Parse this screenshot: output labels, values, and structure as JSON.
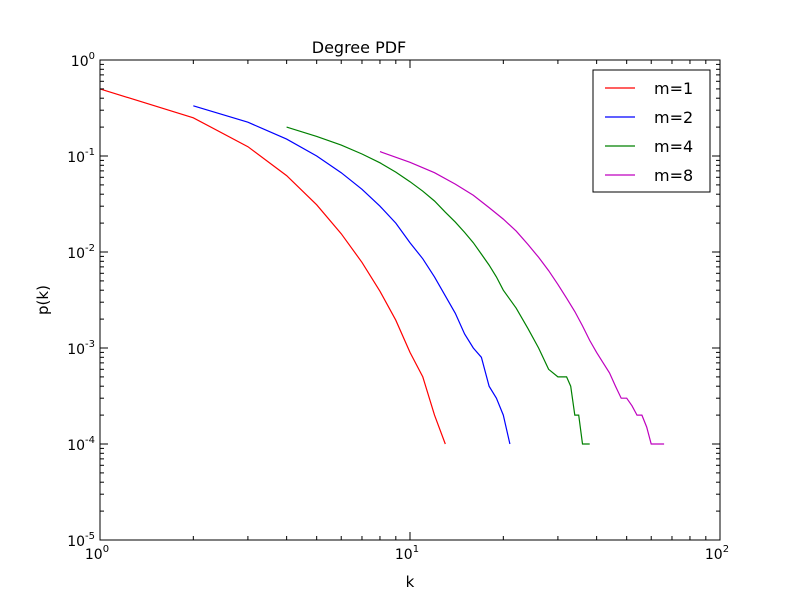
{
  "chart_data": {
    "type": "line",
    "title": "Degree PDF",
    "xlabel": "k",
    "ylabel": "p(k)",
    "xscale": "log",
    "yscale": "log",
    "xlim": [
      1,
      100
    ],
    "ylim": [
      1e-05,
      1
    ],
    "x_ticks": [
      {
        "value": 1,
        "base": "10",
        "exp": "0"
      },
      {
        "value": 10,
        "base": "10",
        "exp": "1"
      },
      {
        "value": 100,
        "base": "10",
        "exp": "2"
      }
    ],
    "y_ticks": [
      {
        "value": 1,
        "base": "10",
        "exp": "0"
      },
      {
        "value": 0.1,
        "base": "10",
        "exp": "-1"
      },
      {
        "value": 0.01,
        "base": "10",
        "exp": "-2"
      },
      {
        "value": 0.001,
        "base": "10",
        "exp": "-3"
      },
      {
        "value": 0.0001,
        "base": "10",
        "exp": "-4"
      },
      {
        "value": 1e-05,
        "base": "10",
        "exp": "-5"
      }
    ],
    "grid": false,
    "legend_position": "top-right",
    "series": [
      {
        "name": "m=1",
        "color": "#ff0000",
        "x": [
          1,
          2,
          3,
          4,
          5,
          6,
          7,
          8,
          9,
          10,
          11,
          12,
          13
        ],
        "y": [
          0.5,
          0.25,
          0.125,
          0.0625,
          0.031,
          0.0155,
          0.0078,
          0.0039,
          0.00195,
          0.0009,
          0.0005,
          0.0002,
          0.0001
        ]
      },
      {
        "name": "m=2",
        "color": "#0000ff",
        "x": [
          2,
          3,
          4,
          5,
          6,
          7,
          8,
          9,
          10,
          11,
          12,
          13,
          14,
          15,
          16,
          17,
          18,
          19,
          20,
          21
        ],
        "y": [
          0.333,
          0.225,
          0.15,
          0.1,
          0.067,
          0.045,
          0.03,
          0.02,
          0.0125,
          0.0085,
          0.0055,
          0.0035,
          0.0023,
          0.0014,
          0.001,
          0.0008,
          0.0004,
          0.0003,
          0.0002,
          0.0001
        ]
      },
      {
        "name": "m=4",
        "color": "#008000",
        "x": [
          4,
          5,
          6,
          7,
          8,
          9,
          10,
          11,
          12,
          13,
          14,
          15,
          16,
          17,
          18,
          19,
          20,
          22,
          24,
          26,
          28,
          30,
          32,
          33,
          34,
          35,
          36,
          37,
          38
        ],
        "y": [
          0.2,
          0.16,
          0.13,
          0.105,
          0.085,
          0.068,
          0.054,
          0.043,
          0.034,
          0.026,
          0.0205,
          0.016,
          0.0125,
          0.0095,
          0.0073,
          0.0055,
          0.004,
          0.0026,
          0.0016,
          0.001,
          0.0006,
          0.0005,
          0.0005,
          0.0004,
          0.0002,
          0.0002,
          0.0001,
          0.0001,
          0.0001
        ]
      },
      {
        "name": "m=8",
        "color": "#bf00bf",
        "x": [
          8,
          10,
          12,
          14,
          16,
          18,
          20,
          22,
          24,
          26,
          28,
          30,
          32,
          34,
          36,
          38,
          40,
          42,
          44,
          46,
          48,
          50,
          52,
          54,
          56,
          58,
          60,
          62,
          64,
          66
        ],
        "y": [
          0.111,
          0.086,
          0.067,
          0.051,
          0.039,
          0.029,
          0.022,
          0.0165,
          0.012,
          0.0088,
          0.0064,
          0.0046,
          0.0033,
          0.0024,
          0.0017,
          0.0012,
          0.0009,
          0.0007,
          0.00055,
          0.0004,
          0.0003,
          0.0003,
          0.00025,
          0.0002,
          0.0002,
          0.00015,
          0.0001,
          0.0001,
          0.0001,
          0.0001
        ]
      }
    ]
  }
}
